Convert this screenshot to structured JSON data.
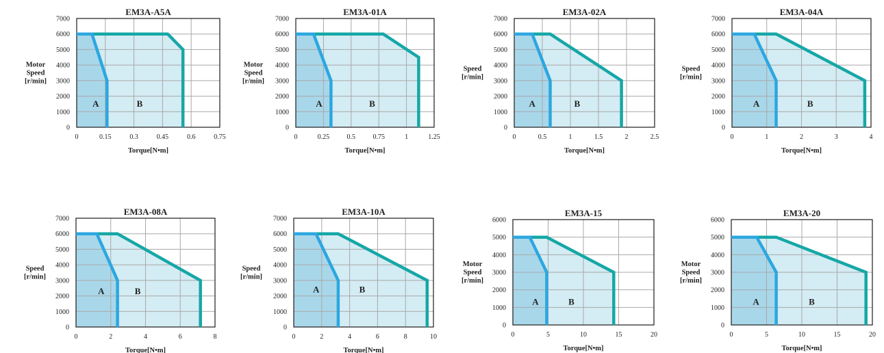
{
  "chart_data": [
    {
      "type": "area",
      "title": "EM3A-A5A",
      "xlabel": "Torque[N•m]",
      "ylabel": [
        "Motor",
        "Speed",
        "[r/min]"
      ],
      "ylabel_bold": true,
      "xlim": [
        0,
        0.75
      ],
      "ylim": [
        0,
        7000
      ],
      "xticks": [
        "0",
        "0.15",
        "0.3",
        "0.45",
        "0.6",
        "0.75"
      ],
      "yticks": [
        "0",
        "1000",
        "2000",
        "3000",
        "4000",
        "5000",
        "6000",
        "7000"
      ],
      "grid": true,
      "series": [
        {
          "region": "A",
          "x": [
            0,
            0.08,
            0.159,
            0.159,
            0
          ],
          "y": [
            6000,
            6000,
            3000,
            0,
            0
          ]
        },
        {
          "region": "B",
          "x": [
            0,
            0.477,
            0.557,
            0.557,
            0
          ],
          "y": [
            6000,
            6000,
            5000,
            0,
            0
          ]
        }
      ],
      "region_labels": [
        {
          "text": "A",
          "x": 0.1,
          "y": 1500
        },
        {
          "text": "B",
          "x": 0.33,
          "y": 1500
        }
      ]
    },
    {
      "type": "area",
      "title": "EM3A-01A",
      "xlabel": "Torque[N•m]",
      "ylabel": [
        "Motor",
        "Speed",
        "[r/min]"
      ],
      "ylabel_bold": false,
      "xlim": [
        0,
        1.25
      ],
      "ylim": [
        0,
        7000
      ],
      "xticks": [
        "0",
        "0.25",
        "0.5",
        "0.75",
        "1",
        "1.25"
      ],
      "yticks": [
        "0",
        "1000",
        "2000",
        "3000",
        "4000",
        "5000",
        "6000",
        "7000"
      ],
      "grid": true,
      "series": [
        {
          "region": "A",
          "x": [
            0,
            0.16,
            0.318,
            0.318,
            0
          ],
          "y": [
            6000,
            6000,
            3000,
            0,
            0
          ]
        },
        {
          "region": "B",
          "x": [
            0,
            0.79,
            1.11,
            1.11,
            0
          ],
          "y": [
            6000,
            6000,
            4500,
            0,
            0
          ]
        }
      ],
      "region_labels": [
        {
          "text": "A",
          "x": 0.21,
          "y": 1500
        },
        {
          "text": "B",
          "x": 0.69,
          "y": 1500
        }
      ]
    },
    {
      "type": "area",
      "title": "EM3A-02A",
      "xlabel": "Torque[N•m]",
      "ylabel": [
        "Speed",
        "[r/min]"
      ],
      "ylabel_bold": true,
      "xlim": [
        0,
        2.5
      ],
      "ylim": [
        0,
        7000
      ],
      "xticks": [
        "0",
        "0.5",
        "1",
        "1.5",
        "2",
        "2.5"
      ],
      "yticks": [
        "0",
        "1000",
        "2000",
        "3000",
        "4000",
        "5000",
        "6000",
        "7000"
      ],
      "grid": true,
      "series": [
        {
          "region": "A",
          "x": [
            0,
            0.32,
            0.64,
            0.64,
            0
          ],
          "y": [
            6000,
            6000,
            3000,
            0,
            0
          ]
        },
        {
          "region": "B",
          "x": [
            0,
            0.64,
            1.91,
            1.91,
            0
          ],
          "y": [
            6000,
            6000,
            3000,
            0,
            0
          ]
        }
      ],
      "region_labels": [
        {
          "text": "A",
          "x": 0.32,
          "y": 1500
        },
        {
          "text": "B",
          "x": 1.12,
          "y": 1500
        }
      ]
    },
    {
      "type": "area",
      "title": "EM3A-04A",
      "xlabel": "Torque[N•m]",
      "ylabel": [
        "Speed",
        "[r/min]"
      ],
      "ylabel_bold": true,
      "xlim": [
        0,
        4
      ],
      "ylim": [
        0,
        7000
      ],
      "xticks": [
        "0",
        "1",
        "2",
        "3",
        "4"
      ],
      "yticks": [
        "0",
        "1000",
        "2000",
        "3000",
        "4000",
        "5000",
        "6000",
        "7000"
      ],
      "grid": true,
      "series": [
        {
          "region": "A",
          "x": [
            0,
            0.64,
            1.27,
            1.27,
            0
          ],
          "y": [
            6000,
            6000,
            3000,
            0,
            0
          ]
        },
        {
          "region": "B",
          "x": [
            0,
            1.27,
            3.82,
            3.82,
            0
          ],
          "y": [
            6000,
            6000,
            3000,
            0,
            0
          ]
        }
      ],
      "region_labels": [
        {
          "text": "A",
          "x": 0.7,
          "y": 1500
        },
        {
          "text": "B",
          "x": 2.25,
          "y": 1500
        }
      ]
    },
    {
      "type": "area",
      "title": "EM3A-08A",
      "xlabel": "Torque[N•m]",
      "ylabel": [
        "Speed",
        "[r/min]"
      ],
      "ylabel_bold": true,
      "xlim": [
        0,
        8
      ],
      "ylim": [
        0,
        7000
      ],
      "xticks": [
        "0",
        "2",
        "4",
        "6",
        "8"
      ],
      "yticks": [
        "0",
        "1000",
        "2000",
        "3000",
        "4000",
        "5000",
        "6000",
        "7000"
      ],
      "grid": true,
      "series": [
        {
          "region": "A",
          "x": [
            0,
            1.2,
            2.39,
            2.39,
            0
          ],
          "y": [
            6000,
            6000,
            3000,
            0,
            0
          ]
        },
        {
          "region": "B",
          "x": [
            0,
            2.39,
            7.16,
            7.16,
            0
          ],
          "y": [
            6000,
            6000,
            3000,
            0,
            0
          ]
        }
      ],
      "region_labels": [
        {
          "text": "A",
          "x": 1.45,
          "y": 2300
        },
        {
          "text": "B",
          "x": 3.55,
          "y": 2300
        }
      ]
    },
    {
      "type": "area",
      "title": "EM3A-10A",
      "xlabel": "Torque[N•m]",
      "ylabel": [
        "Speed",
        "[r/min]"
      ],
      "ylabel_bold": true,
      "xlim": [
        0,
        10
      ],
      "ylim": [
        0,
        7000
      ],
      "xticks": [
        "0",
        "2",
        "4",
        "6",
        "8",
        "10"
      ],
      "yticks": [
        "0",
        "1000",
        "2000",
        "3000",
        "4000",
        "5000",
        "6000",
        "7000"
      ],
      "grid": true,
      "series": [
        {
          "region": "A",
          "x": [
            0,
            1.59,
            3.18,
            3.18,
            0
          ],
          "y": [
            6000,
            6000,
            3000,
            0,
            0
          ]
        },
        {
          "region": "B",
          "x": [
            0,
            3.18,
            9.55,
            9.55,
            0
          ],
          "y": [
            6000,
            6000,
            3000,
            0,
            0
          ]
        }
      ],
      "region_labels": [
        {
          "text": "A",
          "x": 1.6,
          "y": 2400
        },
        {
          "text": "B",
          "x": 4.9,
          "y": 2400
        }
      ]
    },
    {
      "type": "area",
      "title": "EM3A-15",
      "xlabel": "Torque[N•m]",
      "ylabel": [
        "Motor",
        "Speed",
        "[r/min]"
      ],
      "ylabel_bold": true,
      "xlim": [
        0,
        20
      ],
      "ylim": [
        0,
        6000
      ],
      "xticks": [
        "0",
        "5",
        "10",
        "15",
        "20"
      ],
      "yticks": [
        "0",
        "1000",
        "2000",
        "3000",
        "4000",
        "5000",
        "6000"
      ],
      "grid": true,
      "series": [
        {
          "region": "A",
          "x": [
            0,
            2.4,
            4.8,
            4.8,
            0
          ],
          "y": [
            5000,
            5000,
            3000,
            0,
            0
          ]
        },
        {
          "region": "B",
          "x": [
            0,
            4.8,
            14.3,
            14.3,
            0
          ],
          "y": [
            5000,
            5000,
            3000,
            0,
            0
          ]
        }
      ],
      "region_labels": [
        {
          "text": "A",
          "x": 3.2,
          "y": 1300
        },
        {
          "text": "B",
          "x": 8.3,
          "y": 1300
        }
      ]
    },
    {
      "type": "area",
      "title": "EM3A-20",
      "xlabel": "Torque[N•m]",
      "ylabel": [
        "Motor",
        "Speed",
        "[r/min]"
      ],
      "ylabel_bold": true,
      "xlim": [
        0,
        20
      ],
      "ylim": [
        0,
        6000
      ],
      "xticks": [
        "0",
        "5",
        "10",
        "15",
        "20"
      ],
      "yticks": [
        "0",
        "1000",
        "2000",
        "3000",
        "4000",
        "5000",
        "6000"
      ],
      "grid": true,
      "series": [
        {
          "region": "A",
          "x": [
            0,
            3.6,
            6.37,
            6.37,
            0
          ],
          "y": [
            5000,
            5000,
            3000,
            0,
            0
          ]
        },
        {
          "region": "B",
          "x": [
            0,
            6.37,
            19.1,
            19.1,
            0
          ],
          "y": [
            5000,
            5000,
            3000,
            0,
            0
          ]
        }
      ],
      "region_labels": [
        {
          "text": "A",
          "x": 3.5,
          "y": 1300
        },
        {
          "text": "B",
          "x": 11.4,
          "y": 1300
        }
      ]
    }
  ],
  "colors": {
    "region_a_fill": "#a9d7ea",
    "region_b_fill": "#d4ecf3",
    "region_a_line": "#2ca7e0",
    "region_b_line": "#16a7a7",
    "grid": "#a8a8a8",
    "frame": "#1a1a1a"
  }
}
